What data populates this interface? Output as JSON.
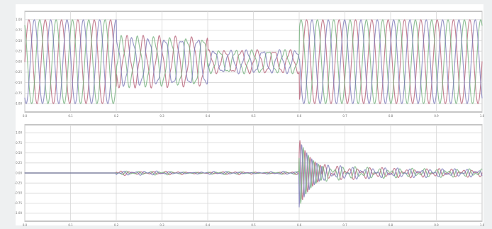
{
  "chart_data": [
    {
      "type": "line",
      "title": "",
      "xlabel": "",
      "ylabel": "",
      "xlim": [
        0,
        1
      ],
      "ylim": [
        -1.2,
        1.2
      ],
      "grid": true,
      "legend": "none",
      "x_ticks": [
        0,
        0.1,
        0.2,
        0.3,
        0.4,
        0.5,
        0.6,
        0.7,
        0.8,
        0.9,
        1.0
      ],
      "y_ticks": [
        -1.0,
        -0.75,
        -0.5,
        -0.25,
        0,
        0.25,
        0.5,
        0.75,
        1.0
      ],
      "phase_colors": [
        "#b55c73",
        "#6fae78",
        "#7876b6"
      ],
      "segments": [
        {
          "start": 0.0,
          "end": 0.2,
          "amplitude": 1.0,
          "cycles_per_unit": 28
        },
        {
          "start": 0.2,
          "end": 0.4,
          "amplitude": 0.55,
          "cycles_per_unit": 28
        },
        {
          "start": 0.4,
          "end": 0.6,
          "amplitude": 0.25,
          "cycles_per_unit": 28
        },
        {
          "start": 0.6,
          "end": 1.0,
          "amplitude": 1.0,
          "cycles_per_unit": 28
        }
      ]
    },
    {
      "type": "line",
      "title": "",
      "xlabel": "",
      "ylabel": "",
      "xlim": [
        0,
        1
      ],
      "ylim": [
        -1.2,
        1.2
      ],
      "grid": true,
      "legend": "none",
      "x_ticks": [
        0,
        0.1,
        0.2,
        0.3,
        0.4,
        0.5,
        0.6,
        0.7,
        0.8,
        0.9,
        1.0
      ],
      "y_ticks": [
        -1.0,
        -0.75,
        -0.5,
        -0.25,
        0,
        0.25,
        0.5,
        0.75,
        1.0
      ],
      "phase_colors": [
        "#b55c73",
        "#6fae78",
        "#7876b6"
      ],
      "segments": [
        {
          "start": 0.0,
          "end": 0.2,
          "amplitude": 0.0,
          "cycles_per_unit": 40
        },
        {
          "start": 0.2,
          "end": 0.6,
          "amplitude": 0.08,
          "cycles_per_unit": 40
        },
        {
          "start": 0.6,
          "end": 0.65,
          "amplitude": 0.85,
          "cycles_per_unit": 25
        },
        {
          "start": 0.65,
          "end": 1.0,
          "amplitude": 0.22,
          "cycles_per_unit": 40
        }
      ]
    }
  ]
}
